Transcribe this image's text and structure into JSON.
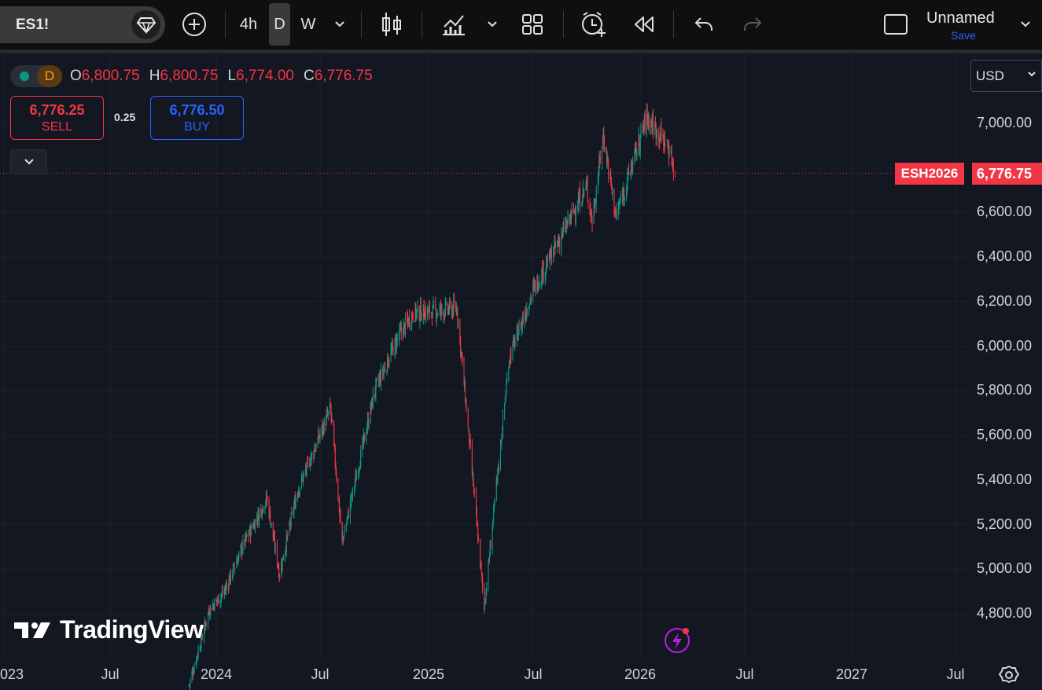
{
  "toolbar": {
    "symbol": "ES1!",
    "intervals": [
      "4h",
      "D",
      "W"
    ],
    "active_interval": "D",
    "layout_name": "Unnamed",
    "save_label": "Save",
    "icons": [
      "gem-icon",
      "add-symbol-icon",
      "chevron-down-icon",
      "candles-icon",
      "indicators-icon",
      "layouts-icon",
      "alert-icon",
      "replay-icon",
      "undo-icon",
      "redo-icon",
      "fullscreen-icon"
    ]
  },
  "legend": {
    "interval_badge": "D",
    "open_label": "O",
    "open": "6,800.75",
    "high_label": "H",
    "high": "6,800.75",
    "low_label": "L",
    "low": "6,774.00",
    "close_label": "C",
    "close": "6,776.75"
  },
  "trade": {
    "sell_price": "6,776.25",
    "sell_label": "SELL",
    "spread": "0.25",
    "buy_price": "6,776.50",
    "buy_label": "BUY"
  },
  "currency": "USD",
  "price_scale": {
    "labels": [
      "7,000.00",
      "6,600.00",
      "6,400.00",
      "6,200.00",
      "6,000.00",
      "5,800.00",
      "5,600.00",
      "5,400.00",
      "5,200.00",
      "5,000.00",
      "4,800.00"
    ],
    "contract": "ESH2026",
    "last_price": "6,776.75"
  },
  "time_scale": {
    "labels": [
      "2023",
      "Jul",
      "2024",
      "Jul",
      "2025",
      "Jul",
      "2026",
      "Jul",
      "2027",
      "Jul"
    ]
  },
  "watermark": "TradingView",
  "colors": {
    "up": "#089981",
    "down": "#f23645",
    "background": "#131722",
    "accent": "#2962ff"
  },
  "chart_data": {
    "type": "line",
    "series": [
      {
        "x": [
          "2023-11-15",
          "2023-12-20",
          "2024-01-15",
          "2024-02-15",
          "2024-03-28",
          "2024-04-19",
          "2024-05-20",
          "2024-07-16",
          "2024-08-05",
          "2024-09-30",
          "2024-11-11",
          "2024-12-06",
          "2025-01-24",
          "2025-02-19",
          "2025-03-13",
          "2025-04-07",
          "2025-05-20",
          "2025-06-30",
          "2025-08-15",
          "2025-09-30",
          "2025-10-10",
          "2025-10-29",
          "2025-11-20",
          "2026-01-12",
          "2026-02-17",
          "2026-03-03"
        ],
        "values": [
          4480,
          4820,
          4900,
          5100,
          5320,
          4980,
          5350,
          5720,
          5120,
          5800,
          6050,
          6150,
          6160,
          6170,
          5550,
          4830,
          5950,
          6250,
          6480,
          6720,
          6560,
          6950,
          6580,
          7030,
          6900,
          6776.75
        ]
      }
    ],
    "ylim": [
      4650,
      7160
    ],
    "grid": true,
    "last_price": 6776.75
  }
}
